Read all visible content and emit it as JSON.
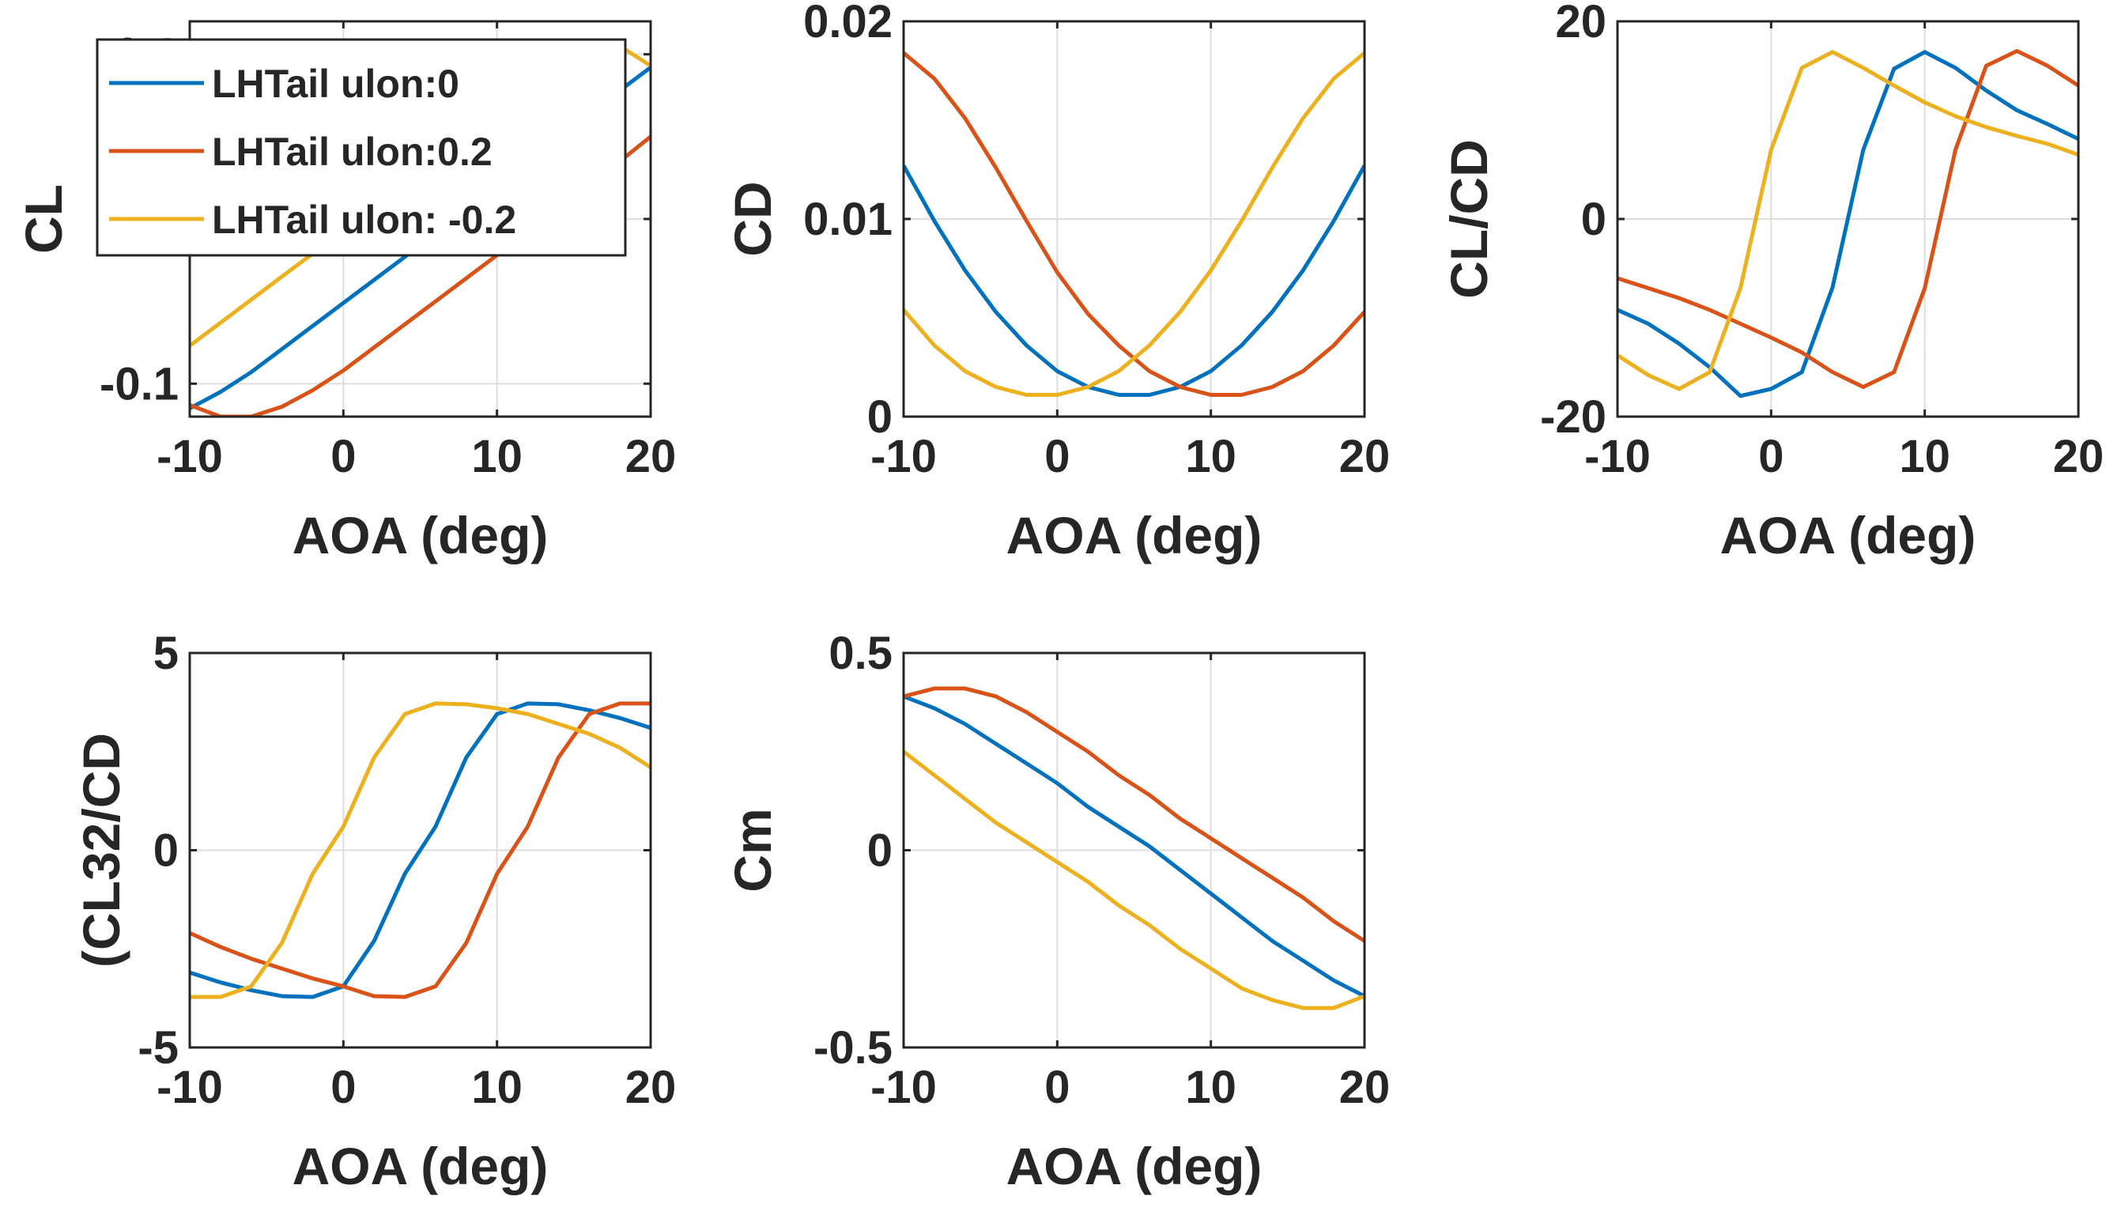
{
  "legend": {
    "entries": [
      "LHTail ulon:0",
      "LHTail ulon:0.2",
      "LHTail ulon: -0.2"
    ],
    "placement": "top-left, over first subplot",
    "colors": [
      "#0072BD",
      "#D95319",
      "#EDB120"
    ]
  },
  "chart_data": [
    {
      "type": "line",
      "ylabel": "CL",
      "xlabel": "AOA (deg)",
      "xlim": [
        -10,
        20
      ],
      "ylim": [
        -0.12,
        0.12
      ],
      "xticks": [
        -10,
        0,
        10,
        20
      ],
      "yticks": [
        -0.1,
        0,
        0.1
      ],
      "yticklabels": [
        "-0.1",
        "",
        "0.1"
      ],
      "grid": true,
      "x": [
        -10,
        -8,
        -6,
        -4,
        -2,
        0,
        2,
        4,
        6,
        8,
        10,
        12,
        14,
        16,
        18,
        20
      ],
      "series": [
        {
          "name": "LHTail ulon:0",
          "color": "#0072BD",
          "values": [
            -0.115,
            -0.105,
            -0.093,
            -0.079,
            -0.065,
            -0.051,
            -0.037,
            -0.023,
            -0.009,
            0.005,
            0.019,
            0.034,
            0.048,
            0.063,
            0.078,
            0.092
          ]
        },
        {
          "name": "LHTail ulon:0.2",
          "color": "#D95319",
          "values": [
            -0.113,
            -0.12,
            -0.12,
            -0.114,
            -0.104,
            -0.092,
            -0.078,
            -0.064,
            -0.05,
            -0.036,
            -0.022,
            -0.008,
            0.006,
            0.021,
            0.035,
            0.05
          ]
        },
        {
          "name": "LHTail ulon: -0.2",
          "color": "#EDB120",
          "values": [
            -0.077,
            -0.063,
            -0.049,
            -0.035,
            -0.021,
            -0.007,
            0.007,
            0.021,
            0.035,
            0.05,
            0.065,
            0.08,
            0.094,
            0.105,
            0.105,
            0.093
          ]
        }
      ]
    },
    {
      "type": "line",
      "ylabel": "CD",
      "xlabel": "AOA (deg)",
      "xlim": [
        -10,
        20
      ],
      "ylim": [
        0,
        0.02
      ],
      "xticks": [
        -10,
        0,
        10,
        20
      ],
      "yticks": [
        0,
        0.01,
        0.02
      ],
      "yticklabels": [
        "0",
        "0.01",
        "0.02"
      ],
      "grid": true,
      "x": [
        -10,
        -8,
        -6,
        -4,
        -2,
        0,
        2,
        4,
        6,
        8,
        10,
        12,
        14,
        16,
        18,
        20
      ],
      "series": [
        {
          "name": "LHTail ulon:0",
          "color": "#0072BD",
          "values": [
            0.0127,
            0.0099,
            0.0074,
            0.0053,
            0.0036,
            0.0023,
            0.0015,
            0.0011,
            0.0011,
            0.0015,
            0.0023,
            0.0036,
            0.0053,
            0.0074,
            0.0099,
            0.0127
          ]
        },
        {
          "name": "LHTail ulon:0.2",
          "color": "#D95319",
          "values": [
            0.0184,
            0.0171,
            0.0151,
            0.0126,
            0.0099,
            0.0073,
            0.0052,
            0.0036,
            0.0023,
            0.0015,
            0.0011,
            0.0011,
            0.0015,
            0.0023,
            0.0036,
            0.0053
          ]
        },
        {
          "name": "LHTail ulon: -0.2",
          "color": "#EDB120",
          "values": [
            0.0054,
            0.0036,
            0.0023,
            0.0015,
            0.0011,
            0.0011,
            0.0015,
            0.0023,
            0.0036,
            0.0053,
            0.0074,
            0.0099,
            0.0126,
            0.0151,
            0.0171,
            0.0184
          ]
        }
      ]
    },
    {
      "type": "line",
      "ylabel": "CL/CD",
      "xlabel": "AOA (deg)",
      "xlim": [
        -10,
        20
      ],
      "ylim": [
        -20,
        20
      ],
      "xticks": [
        -10,
        0,
        10,
        20
      ],
      "yticks": [
        -20,
        0,
        20
      ],
      "yticklabels": [
        "-20",
        "0",
        "20"
      ],
      "grid": true,
      "x": [
        -10,
        -8,
        -6,
        -4,
        -2,
        0,
        2,
        4,
        6,
        8,
        10,
        12,
        14,
        16,
        18,
        20
      ],
      "series": [
        {
          "name": "LHTail ulon:0",
          "color": "#0072BD",
          "values": [
            -9.2,
            -10.6,
            -12.6,
            -15.0,
            -17.9,
            -17.2,
            -15.5,
            -6.9,
            7.0,
            15.2,
            16.9,
            15.3,
            13.0,
            11.0,
            9.6,
            8.1
          ]
        },
        {
          "name": "LHTail ulon:0.2",
          "color": "#D95319",
          "values": [
            -6.0,
            -7.0,
            -8.0,
            -9.2,
            -10.6,
            -12.0,
            -13.5,
            -15.5,
            -17.0,
            -15.5,
            -7.0,
            7.0,
            15.5,
            17.0,
            15.5,
            13.5
          ]
        },
        {
          "name": "LHTail ulon: -0.2",
          "color": "#EDB120",
          "values": [
            -13.8,
            -15.8,
            -17.2,
            -15.5,
            -7.0,
            7.0,
            15.3,
            16.9,
            15.3,
            13.5,
            11.8,
            10.4,
            9.3,
            8.4,
            7.6,
            6.5
          ]
        }
      ]
    },
    {
      "type": "line",
      "ylabel": "(CL32/CD",
      "xlabel": "AOA (deg)",
      "xlim": [
        -10,
        20
      ],
      "ylim": [
        -5,
        5
      ],
      "xticks": [
        -10,
        0,
        10,
        20
      ],
      "yticks": [
        -5,
        0,
        5
      ],
      "yticklabels": [
        "-5",
        "0",
        "5"
      ],
      "grid": true,
      "x": [
        -10,
        -8,
        -6,
        -4,
        -2,
        0,
        2,
        4,
        6,
        8,
        10,
        12,
        14,
        16,
        18,
        20
      ],
      "series": [
        {
          "name": "LHTail ulon:0",
          "color": "#0072BD",
          "values": [
            -3.1,
            -3.35,
            -3.55,
            -3.7,
            -3.72,
            -3.45,
            -2.3,
            -0.6,
            0.6,
            2.35,
            3.45,
            3.72,
            3.7,
            3.55,
            3.35,
            3.1
          ]
        },
        {
          "name": "LHTail ulon:0.2",
          "color": "#D95319",
          "values": [
            -2.1,
            -2.45,
            -2.75,
            -3.0,
            -3.25,
            -3.45,
            -3.7,
            -3.72,
            -3.45,
            -2.35,
            -0.6,
            0.6,
            2.35,
            3.45,
            3.72,
            3.72
          ]
        },
        {
          "name": "LHTail ulon: -0.2",
          "color": "#EDB120",
          "values": [
            -3.72,
            -3.72,
            -3.45,
            -2.35,
            -0.6,
            0.6,
            2.35,
            3.45,
            3.72,
            3.7,
            3.6,
            3.45,
            3.2,
            2.95,
            2.6,
            2.1
          ]
        }
      ]
    },
    {
      "type": "line",
      "ylabel": "Cm",
      "xlabel": "AOA (deg)",
      "xlim": [
        -10,
        20
      ],
      "ylim": [
        -0.5,
        0.5
      ],
      "xticks": [
        -10,
        0,
        10,
        20
      ],
      "yticks": [
        -0.5,
        0,
        0.5
      ],
      "yticklabels": [
        "-0.5",
        "0",
        "0.5"
      ],
      "grid": true,
      "x": [
        -10,
        -8,
        -6,
        -4,
        -2,
        0,
        2,
        4,
        6,
        8,
        10,
        12,
        14,
        16,
        18,
        20
      ],
      "series": [
        {
          "name": "LHTail ulon:0",
          "color": "#0072BD",
          "values": [
            0.39,
            0.36,
            0.32,
            0.27,
            0.22,
            0.17,
            0.11,
            0.06,
            0.01,
            -0.05,
            -0.11,
            -0.17,
            -0.23,
            -0.28,
            -0.33,
            -0.37
          ]
        },
        {
          "name": "LHTail ulon:0.2",
          "color": "#D95319",
          "values": [
            0.39,
            0.41,
            0.41,
            0.39,
            0.35,
            0.3,
            0.25,
            0.19,
            0.14,
            0.08,
            0.03,
            -0.02,
            -0.07,
            -0.12,
            -0.18,
            -0.23
          ]
        },
        {
          "name": "LHTail ulon: -0.2",
          "color": "#EDB120",
          "values": [
            0.25,
            0.19,
            0.13,
            0.07,
            0.02,
            -0.03,
            -0.08,
            -0.14,
            -0.19,
            -0.25,
            -0.3,
            -0.35,
            -0.38,
            -0.4,
            -0.4,
            -0.37
          ]
        }
      ]
    }
  ]
}
